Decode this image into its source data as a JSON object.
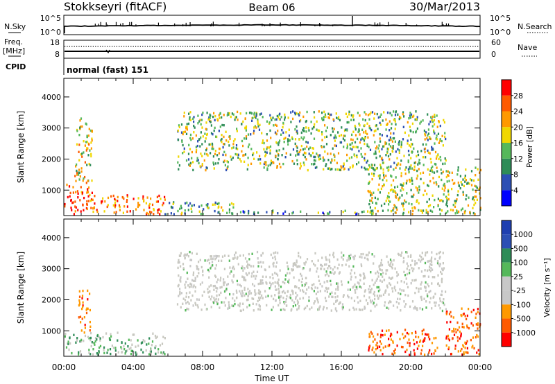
{
  "header": {
    "title": "Stokkseyri (fitACF)",
    "beam": "Beam 06",
    "date": "30/Mar/2013"
  },
  "top_panels": {
    "nsky_label": "N.Sky",
    "nsky_ticks": [
      "10^5",
      "10^0"
    ],
    "nsearch_label": "N.Search",
    "nsearch_ticks": [
      "10^5",
      "10^0"
    ],
    "freq_label": "Freq.",
    "freq_unit": "[MHz]",
    "freq_ticks": [
      "18",
      "8"
    ],
    "nave_label": "Nave",
    "nave_ticks": [
      "60",
      "0"
    ],
    "cpid_label": "CPID",
    "cpid_value": "normal (fast) 151"
  },
  "colors": {
    "power": [
      "#0000ff",
      "#2c4fb4",
      "#2e8c57",
      "#55b85a",
      "#f0d700",
      "#ff9900",
      "#ff5a00",
      "#ff0000"
    ],
    "velocity": [
      "#ff0000",
      "#ff5a00",
      "#ff9900",
      "#c8c8c8",
      "#c8c8c8",
      "#55b85a",
      "#2e8c57",
      "#2c4fb4",
      "#1f3fb0"
    ],
    "ground_scatter": "#c8c8c0"
  },
  "chart_data": [
    {
      "type": "heatmap",
      "panel": "power",
      "ylabel": "Slant Range [km]",
      "yticks": [
        1000,
        2000,
        3000,
        4000
      ],
      "ylim": [
        180,
        4600
      ],
      "colorbar_label": "Power [dB]",
      "colorbar_ticks": [
        4,
        8,
        12,
        16,
        20,
        24,
        28
      ],
      "xlim_hours": [
        0,
        24
      ],
      "scatter_regions": [
        {
          "t0": 0.0,
          "t1": 1.6,
          "r0": 180,
          "r1": 1200,
          "level": 0.85
        },
        {
          "t0": 0.6,
          "t1": 1.6,
          "r0": 1200,
          "r1": 3300,
          "level": 0.55
        },
        {
          "t0": 1.6,
          "t1": 5.8,
          "r0": 180,
          "r1": 800,
          "level": 0.75
        },
        {
          "t0": 5.8,
          "t1": 10.0,
          "r0": 180,
          "r1": 600,
          "level": 0.4
        },
        {
          "t0": 10.0,
          "t1": 18.0,
          "r0": 180,
          "r1": 300,
          "level": 0.3
        },
        {
          "t0": 6.5,
          "t1": 22.0,
          "r0": 1600,
          "r1": 3500,
          "level": 0.45
        },
        {
          "t0": 17.5,
          "t1": 24.0,
          "r0": 180,
          "r1": 1700,
          "level": 0.5
        }
      ]
    },
    {
      "type": "heatmap",
      "panel": "velocity",
      "ylabel": "Slant Range [km]",
      "yticks": [
        1000,
        2000,
        3000,
        4000
      ],
      "ylim": [
        180,
        4600
      ],
      "colorbar_label": "Velocity [m s⁻¹]",
      "colorbar_ticks": [
        1000,
        500,
        100,
        25,
        -25,
        -100,
        -500,
        -1000
      ],
      "xlim_hours": [
        0,
        24
      ],
      "xlabel": "Time UT",
      "xticks": [
        "00:00",
        "04:00",
        "08:00",
        "12:00",
        "16:00",
        "20:00",
        "00:00"
      ],
      "scatter_regions": [
        {
          "t0": 0.0,
          "t1": 5.8,
          "r0": 180,
          "r1": 900,
          "level": 0.55
        },
        {
          "t0": 0.8,
          "t1": 1.5,
          "r0": 900,
          "r1": 2300,
          "level": 0.25
        },
        {
          "t0": 6.5,
          "t1": 22.0,
          "r0": 1600,
          "r1": 3500,
          "level": 0.45
        },
        {
          "t0": 17.5,
          "t1": 21.5,
          "r0": 180,
          "r1": 1000,
          "level": 0.15
        },
        {
          "t0": 22.0,
          "t1": 24.0,
          "r0": 180,
          "r1": 1700,
          "level": 0.1
        }
      ]
    }
  ]
}
